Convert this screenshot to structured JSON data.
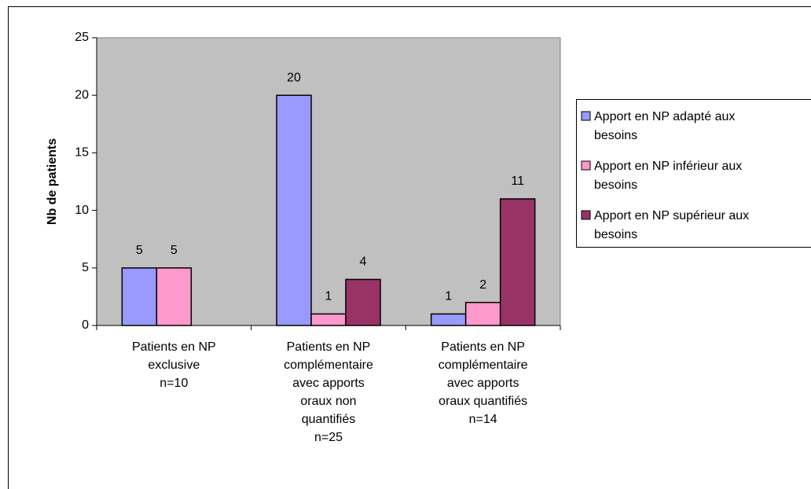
{
  "chart_data": {
    "type": "bar",
    "y_label": "Nb de patients",
    "categories": [
      "Patients en NP\nexclusive\nn=10",
      "Patients en NP\ncomplémentaire\navec apports\noraux non\nquantifiés\nn=25",
      "Patients en NP\ncomplémentaire\navec apports\noraux quantifiés\nn=14"
    ],
    "series": [
      {
        "name": "Apport en NP adapté aux\nbesoins",
        "color": "#9999ff",
        "values": [
          5,
          20,
          1
        ]
      },
      {
        "name": "Apport en NP inférieur aux\nbesoins",
        "color": "#ff99cc",
        "values": [
          5,
          1,
          2
        ]
      },
      {
        "name": "Apport en NP supérieur aux\nbesoins",
        "color": "#993366",
        "values": [
          null,
          4,
          11
        ]
      }
    ],
    "ylim": [
      0,
      25
    ],
    "yticks": [
      0,
      5,
      10,
      15,
      20,
      25
    ],
    "plot_background": "#c0c0c0",
    "legend": "right"
  }
}
